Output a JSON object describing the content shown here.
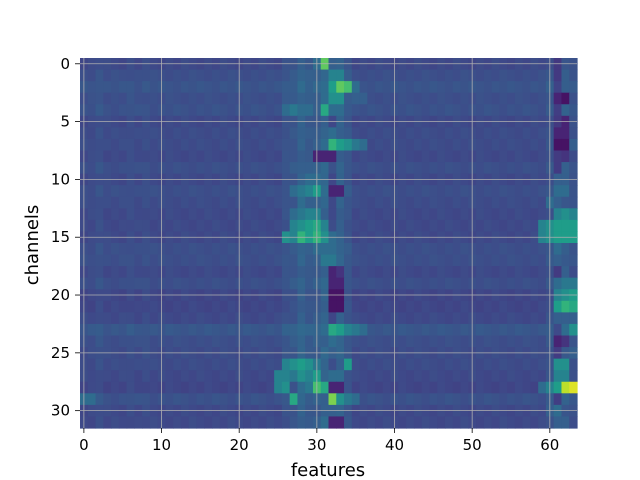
{
  "chart_data": {
    "type": "heatmap",
    "title": "",
    "xlabel": "features",
    "ylabel": "channels",
    "xlim": [
      -0.5,
      63.5
    ],
    "ylim": [
      31.5,
      -0.5
    ],
    "y_axis_inverted": true,
    "colormap": "viridis",
    "grid": true,
    "grid_color": "#b0b0b0",
    "x_ticks": [
      0,
      10,
      20,
      30,
      40,
      50,
      60
    ],
    "y_ticks": [
      0,
      5,
      10,
      15,
      20,
      25,
      30
    ],
    "x_tick_labels": [
      "0",
      "10",
      "20",
      "30",
      "40",
      "50",
      "60"
    ],
    "y_tick_labels": [
      "0",
      "5",
      "10",
      "15",
      "20",
      "25",
      "30"
    ],
    "n_rows": 32,
    "n_cols": 64,
    "value_range": [
      0,
      1
    ],
    "background_value": 0.22,
    "row_offsets": [
      0.0,
      0.02,
      0.04,
      0.02,
      0.03,
      0.0,
      0.01,
      0.01,
      0.0,
      0.02,
      0.0,
      0.02,
      0.01,
      0.0,
      0.0,
      0.0,
      0.02,
      0.02,
      0.0,
      0.02,
      -0.01,
      -0.01,
      0.0,
      0.05,
      0.02,
      0.01,
      0.01,
      0.0,
      -0.01,
      0.03,
      0.0,
      0.0
    ],
    "col_offsets": [
      0.0,
      0.0,
      0.02,
      0.0,
      0.0,
      0.0,
      0.01,
      0.0,
      0.01,
      0.0,
      0.0,
      0.0,
      0.0,
      0.0,
      0.0,
      0.0,
      0.0,
      0.0,
      0.0,
      0.0,
      0.0,
      0.0,
      0.0,
      0.0,
      0.0,
      0.0,
      0.03,
      0.04,
      0.08,
      0.05,
      0.06,
      0.1,
      0.0,
      0.08,
      0.04,
      0.0,
      0.0,
      0.0,
      0.0,
      0.0,
      0.0,
      0.0,
      0.0,
      0.0,
      0.0,
      0.0,
      0.0,
      0.0,
      0.0,
      0.0,
      0.0,
      0.0,
      0.0,
      0.0,
      0.0,
      0.0,
      0.0,
      0.0,
      0.0,
      0.0,
      0.03,
      -0.06,
      0.05,
      0.02
    ],
    "cells": [
      [
        0,
        31,
        0.75
      ],
      [
        0,
        30,
        0.35
      ],
      [
        0,
        28,
        0.3
      ],
      [
        0,
        32,
        0.3
      ],
      [
        1,
        32,
        0.45
      ],
      [
        1,
        33,
        0.45
      ],
      [
        2,
        33,
        0.75
      ],
      [
        2,
        34,
        0.7
      ],
      [
        2,
        32,
        0.55
      ],
      [
        2,
        35,
        0.35
      ],
      [
        2,
        31,
        0.35
      ],
      [
        3,
        32,
        0.5
      ],
      [
        3,
        33,
        0.5
      ],
      [
        3,
        35,
        0.3
      ],
      [
        3,
        36,
        0.3
      ],
      [
        3,
        62,
        0.05
      ],
      [
        3,
        61,
        0.1
      ],
      [
        4,
        31,
        0.6
      ],
      [
        4,
        30,
        0.3
      ],
      [
        4,
        27,
        0.4
      ],
      [
        4,
        26,
        0.35
      ],
      [
        4,
        28,
        0.35
      ],
      [
        4,
        29,
        0.35
      ],
      [
        4,
        32,
        0.35
      ],
      [
        4,
        33,
        0.35
      ],
      [
        5,
        31,
        0.3
      ],
      [
        5,
        62,
        0.1
      ],
      [
        6,
        32,
        0.35
      ],
      [
        6,
        33,
        0.3
      ],
      [
        6,
        61,
        0.1
      ],
      [
        6,
        62,
        0.1
      ],
      [
        7,
        32,
        0.65
      ],
      [
        7,
        33,
        0.55
      ],
      [
        7,
        34,
        0.5
      ],
      [
        7,
        31,
        0.35
      ],
      [
        7,
        35,
        0.4
      ],
      [
        7,
        36,
        0.35
      ],
      [
        7,
        61,
        0.05
      ],
      [
        7,
        62,
        0.05
      ],
      [
        7,
        63,
        0.3
      ],
      [
        8,
        32,
        0.1
      ],
      [
        8,
        31,
        0.1
      ],
      [
        8,
        30,
        0.1
      ],
      [
        8,
        62,
        0.15
      ],
      [
        9,
        28,
        0.3
      ],
      [
        9,
        29,
        0.3
      ],
      [
        10,
        29,
        0.35
      ],
      [
        10,
        30,
        0.35
      ],
      [
        10,
        61,
        0.3
      ],
      [
        10,
        62,
        0.3
      ],
      [
        11,
        29,
        0.45
      ],
      [
        11,
        30,
        0.55
      ],
      [
        11,
        31,
        0.35
      ],
      [
        11,
        27,
        0.35
      ],
      [
        11,
        28,
        0.4
      ],
      [
        11,
        32,
        0.1
      ],
      [
        11,
        33,
        0.1
      ],
      [
        11,
        61,
        0.35
      ],
      [
        11,
        62,
        0.35
      ],
      [
        12,
        28,
        0.35
      ],
      [
        12,
        29,
        0.3
      ],
      [
        12,
        60,
        0.35
      ],
      [
        12,
        61,
        0.3
      ],
      [
        13,
        27,
        0.35
      ],
      [
        13,
        28,
        0.4
      ],
      [
        13,
        29,
        0.45
      ],
      [
        13,
        30,
        0.45
      ],
      [
        13,
        31,
        0.3
      ],
      [
        13,
        61,
        0.45
      ],
      [
        13,
        62,
        0.5
      ],
      [
        13,
        63,
        0.45
      ],
      [
        14,
        27,
        0.45
      ],
      [
        14,
        28,
        0.5
      ],
      [
        14,
        29,
        0.55
      ],
      [
        14,
        30,
        0.6
      ],
      [
        14,
        31,
        0.45
      ],
      [
        14,
        59,
        0.45
      ],
      [
        14,
        60,
        0.5
      ],
      [
        14,
        61,
        0.55
      ],
      [
        14,
        62,
        0.55
      ],
      [
        14,
        63,
        0.55
      ],
      [
        15,
        26,
        0.5
      ],
      [
        15,
        27,
        0.45
      ],
      [
        15,
        28,
        0.65
      ],
      [
        15,
        29,
        0.55
      ],
      [
        15,
        30,
        0.65
      ],
      [
        15,
        31,
        0.5
      ],
      [
        15,
        32,
        0.35
      ],
      [
        15,
        59,
        0.45
      ],
      [
        15,
        60,
        0.5
      ],
      [
        15,
        61,
        0.55
      ],
      [
        15,
        62,
        0.55
      ],
      [
        15,
        63,
        0.55
      ],
      [
        16,
        30,
        0.35
      ],
      [
        16,
        31,
        0.35
      ],
      [
        16,
        32,
        0.35
      ],
      [
        16,
        61,
        0.35
      ],
      [
        17,
        31,
        0.4
      ],
      [
        17,
        32,
        0.4
      ],
      [
        17,
        30,
        0.3
      ],
      [
        17,
        61,
        0.3
      ],
      [
        18,
        31,
        0.3
      ],
      [
        18,
        32,
        0.1
      ],
      [
        18,
        33,
        0.15
      ],
      [
        18,
        62,
        0.3
      ],
      [
        19,
        32,
        0.1
      ],
      [
        19,
        33,
        0.1
      ],
      [
        19,
        61,
        0.35
      ],
      [
        19,
        62,
        0.4
      ],
      [
        19,
        63,
        0.4
      ],
      [
        20,
        32,
        0.05
      ],
      [
        20,
        33,
        0.05
      ],
      [
        20,
        61,
        0.45
      ],
      [
        20,
        62,
        0.5
      ],
      [
        20,
        63,
        0.55
      ],
      [
        21,
        32,
        0.05
      ],
      [
        21,
        33,
        0.05
      ],
      [
        21,
        61,
        0.55
      ],
      [
        21,
        62,
        0.65
      ],
      [
        21,
        63,
        0.6
      ],
      [
        22,
        62,
        0.3
      ],
      [
        22,
        61,
        0.3
      ],
      [
        22,
        63,
        0.3
      ],
      [
        23,
        32,
        0.6
      ],
      [
        23,
        33,
        0.55
      ],
      [
        23,
        34,
        0.45
      ],
      [
        23,
        35,
        0.4
      ],
      [
        23,
        36,
        0.35
      ],
      [
        23,
        31,
        0.35
      ],
      [
        23,
        63,
        0.5
      ],
      [
        23,
        62,
        0.35
      ],
      [
        24,
        32,
        0.35
      ],
      [
        24,
        31,
        0.3
      ],
      [
        24,
        61,
        0.1
      ],
      [
        24,
        62,
        0.15
      ],
      [
        25,
        32,
        0.3
      ],
      [
        25,
        63,
        0.3
      ],
      [
        26,
        27,
        0.5
      ],
      [
        26,
        28,
        0.55
      ],
      [
        26,
        29,
        0.5
      ],
      [
        26,
        30,
        0.4
      ],
      [
        26,
        26,
        0.45
      ],
      [
        26,
        34,
        0.55
      ],
      [
        26,
        61,
        0.5
      ],
      [
        26,
        62,
        0.5
      ],
      [
        27,
        25,
        0.45
      ],
      [
        27,
        26,
        0.45
      ],
      [
        27,
        27,
        0.4
      ],
      [
        27,
        28,
        0.5
      ],
      [
        27,
        29,
        0.45
      ],
      [
        27,
        30,
        0.55
      ],
      [
        27,
        32,
        0.35
      ],
      [
        27,
        33,
        0.35
      ],
      [
        27,
        61,
        0.45
      ],
      [
        27,
        62,
        0.45
      ],
      [
        28,
        25,
        0.45
      ],
      [
        28,
        26,
        0.5
      ],
      [
        28,
        28,
        0.35
      ],
      [
        28,
        29,
        0.4
      ],
      [
        28,
        30,
        0.7
      ],
      [
        28,
        31,
        0.6
      ],
      [
        28,
        32,
        0.1
      ],
      [
        28,
        33,
        0.1
      ],
      [
        28,
        59,
        0.35
      ],
      [
        28,
        60,
        0.45
      ],
      [
        28,
        61,
        0.55
      ],
      [
        28,
        62,
        0.9
      ],
      [
        28,
        63,
        0.95
      ],
      [
        29,
        27,
        0.6
      ],
      [
        29,
        31,
        0.3
      ],
      [
        29,
        32,
        0.8
      ],
      [
        29,
        33,
        0.5
      ],
      [
        29,
        34,
        0.4
      ],
      [
        29,
        35,
        0.35
      ],
      [
        29,
        0,
        0.35
      ],
      [
        29,
        1,
        0.35
      ],
      [
        30,
        31,
        0.3
      ],
      [
        30,
        32,
        0.3
      ],
      [
        30,
        60,
        0.3
      ],
      [
        30,
        61,
        0.35
      ],
      [
        31,
        32,
        0.1
      ],
      [
        31,
        33,
        0.1
      ],
      [
        31,
        31,
        0.35
      ],
      [
        31,
        30,
        0.3
      ],
      [
        31,
        62,
        0.3
      ],
      [
        31,
        61,
        0.3
      ]
    ]
  }
}
